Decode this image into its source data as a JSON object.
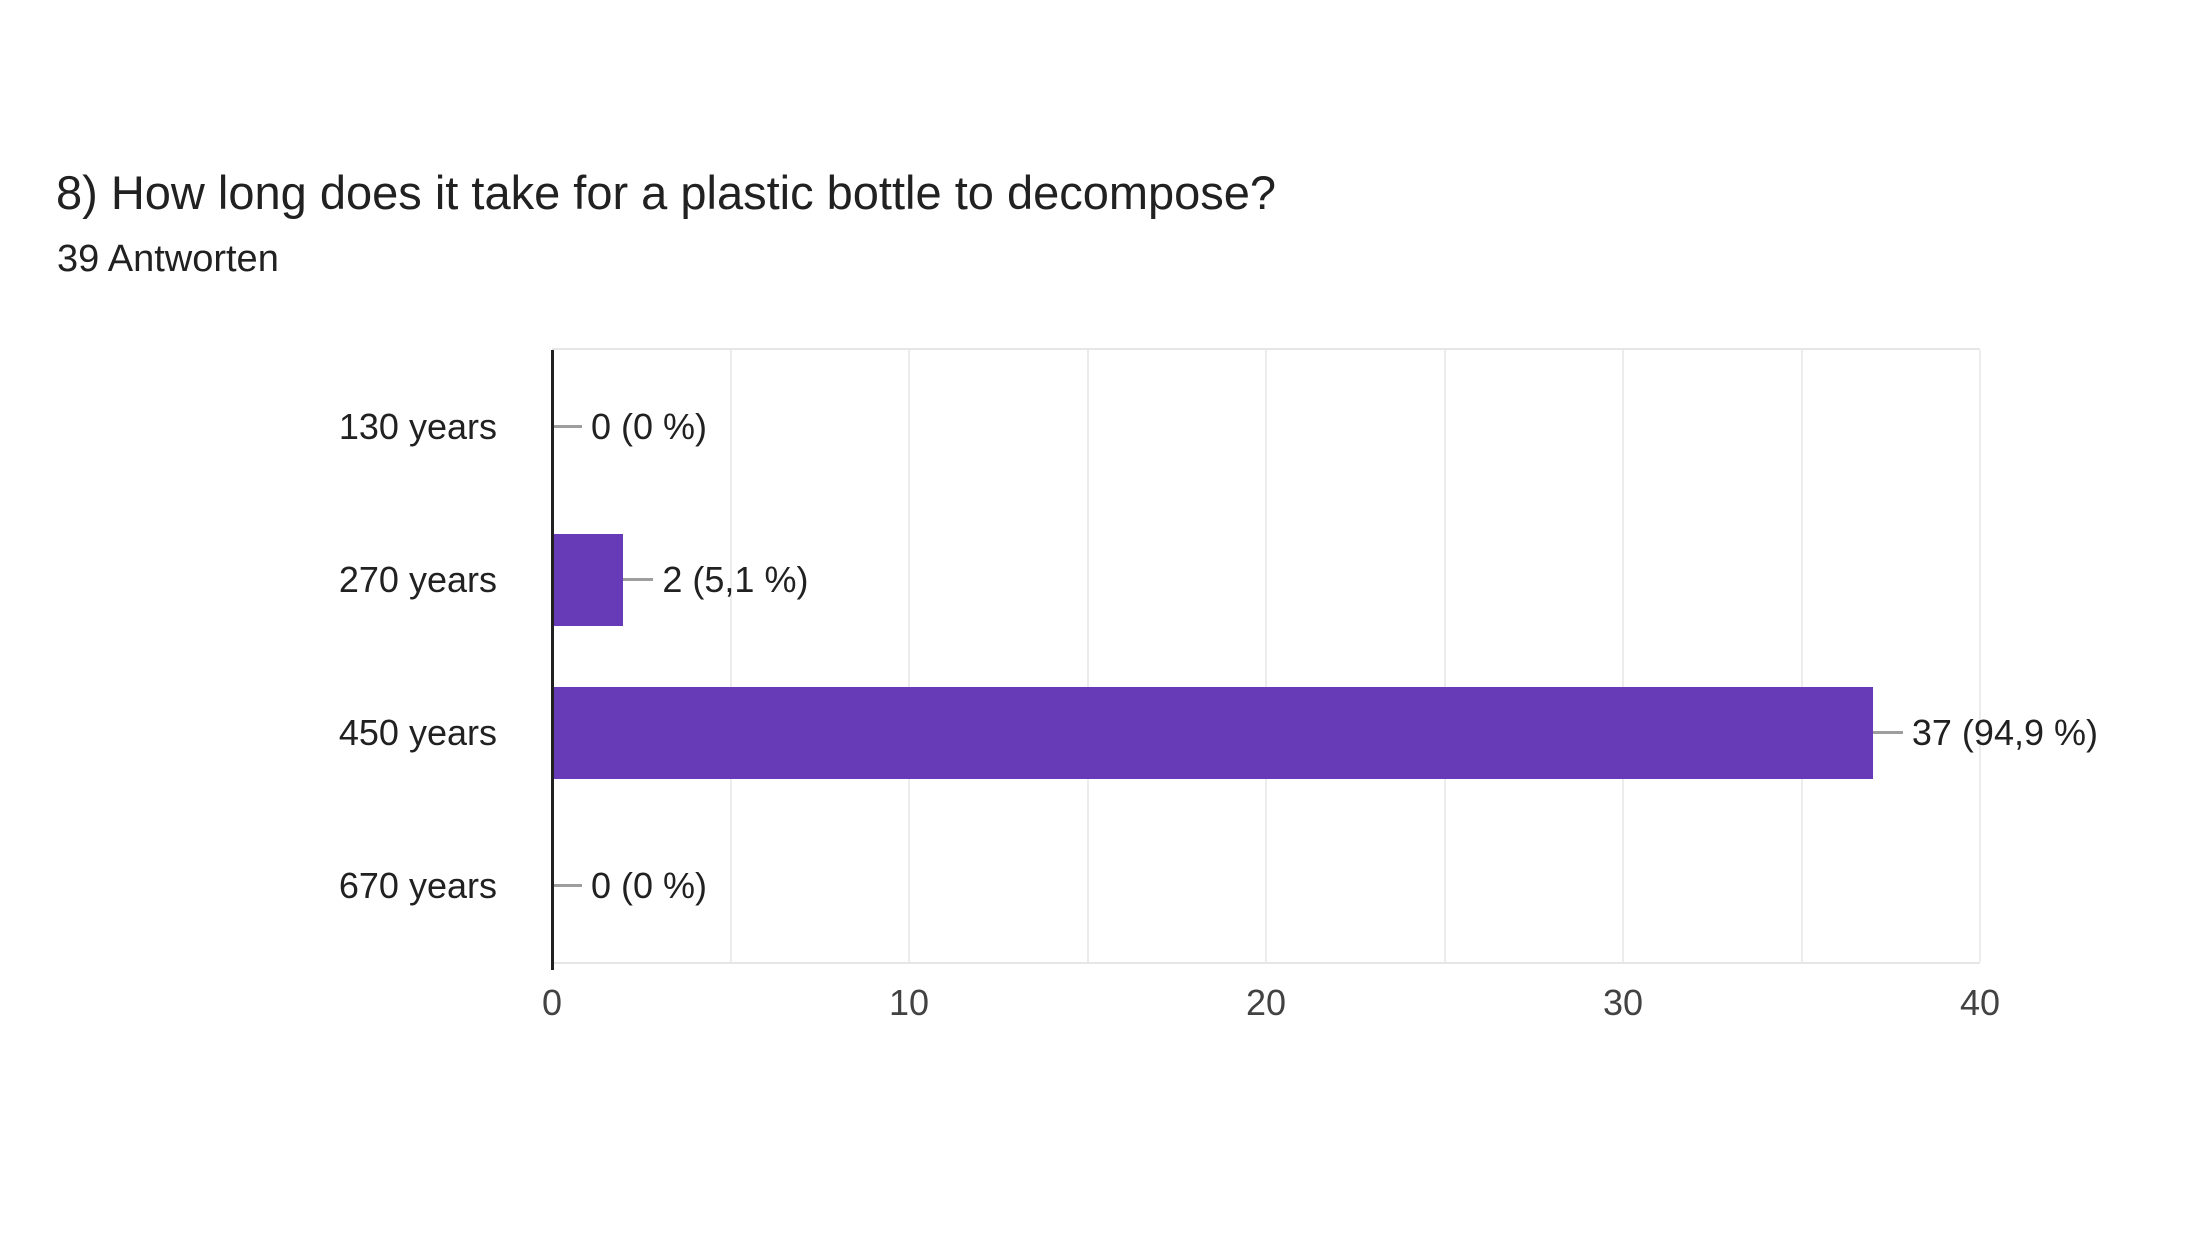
{
  "header": {
    "title": "8) How long does it take for a plastic bottle to decompose?",
    "subtitle": "39 Antworten"
  },
  "chart_data": {
    "type": "bar",
    "orientation": "horizontal",
    "title": "8) How long does it take for a plastic bottle to decompose?",
    "subtitle": "39 Antworten",
    "total_responses": 39,
    "categories": [
      "130 years",
      "270 years",
      "450 years",
      "670 years"
    ],
    "values": [
      0,
      2,
      37,
      0
    ],
    "value_labels": [
      "0 (0 %)",
      "2 (5,1 %)",
      "37 (94,9 %)",
      "0 (0 %)"
    ],
    "xlim": [
      0,
      40
    ],
    "xticks": [
      0,
      10,
      20,
      30,
      40
    ],
    "gridline_step": 5,
    "grid": true,
    "legend_position": "none",
    "bar_color": "#673ab7",
    "axis_color": "#212121",
    "gridline_color": "#ececec",
    "connector_color": "#9e9e9e",
    "text_color": "#212121",
    "tick_color": "#424242"
  }
}
